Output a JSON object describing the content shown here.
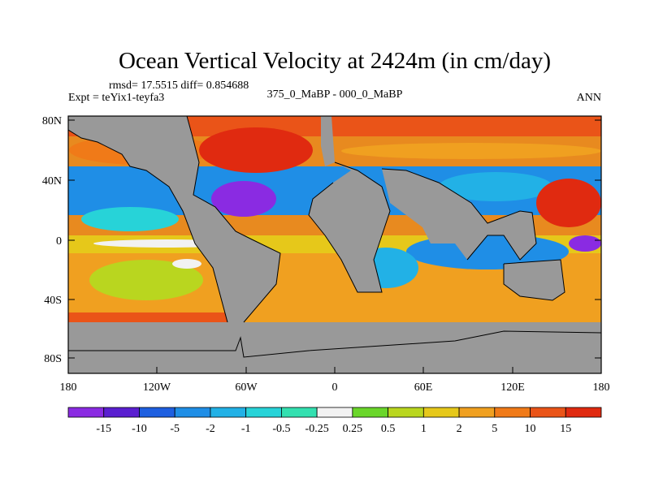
{
  "title": "Ocean Vertical Velocity at 2424m (in cm/day)",
  "stats": "rmsd= 17.5515 diff= 0.854688",
  "experiment": "Expt = teYix1-teyfa3",
  "comparison": "375_0_MaBP - 000_0_MaBP",
  "period": "ANN",
  "lat_ticks": [
    "80N",
    "40N",
    "0",
    "40S",
    "80S"
  ],
  "lon_ticks": [
    "180",
    "120W",
    "60W",
    "0",
    "60E",
    "120E",
    "180"
  ],
  "colorbar": {
    "labels": [
      "-15",
      "-10",
      "-5",
      "-2",
      "-1",
      "-0.5",
      "-0.25",
      "0.25",
      "0.5",
      "1",
      "2",
      "5",
      "10",
      "15"
    ],
    "colors": [
      "#8a2be2",
      "#5a1fd0",
      "#1e5fe0",
      "#1f8ee6",
      "#22b1e6",
      "#27d3d8",
      "#33e0b0",
      "#f2f2f2",
      "#6ad62a",
      "#b9d61f",
      "#e6c81a",
      "#f0a020",
      "#f07a18",
      "#ea5418",
      "#e02a10"
    ]
  },
  "land_color": "#999999"
}
